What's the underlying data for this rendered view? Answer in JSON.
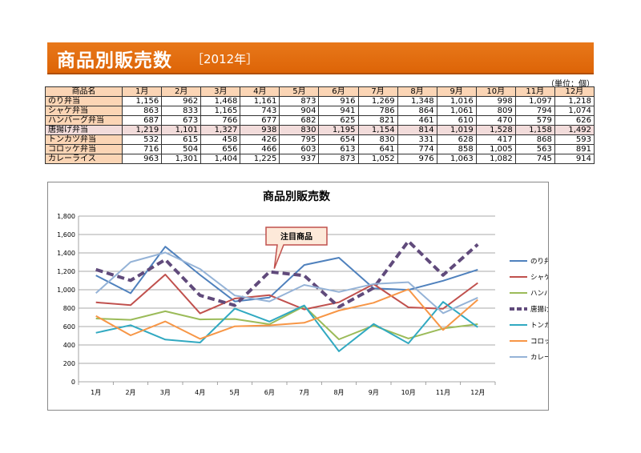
{
  "header": {
    "title": "商品別販売数",
    "subtitle": "［2012年］"
  },
  "unit_label": "（単位：個）",
  "table": {
    "header": [
      "商品名",
      "1月",
      "2月",
      "3月",
      "4月",
      "5月",
      "6月",
      "7月",
      "8月",
      "9月",
      "10月",
      "11月",
      "12月"
    ],
    "rows": [
      {
        "name": "のり弁当",
        "values": [
          "1,156",
          "962",
          "1,468",
          "1,161",
          "873",
          "916",
          "1,269",
          "1,348",
          "1,016",
          "998",
          "1,097",
          "1,218"
        ]
      },
      {
        "name": "シャケ弁当",
        "values": [
          "863",
          "833",
          "1,165",
          "743",
          "904",
          "941",
          "786",
          "864",
          "1,061",
          "809",
          "794",
          "1,074"
        ]
      },
      {
        "name": "ハンバーグ弁当",
        "values": [
          "687",
          "673",
          "766",
          "677",
          "682",
          "625",
          "821",
          "461",
          "610",
          "470",
          "579",
          "626"
        ]
      },
      {
        "name": "唐揚げ弁当",
        "values": [
          "1,219",
          "1,101",
          "1,327",
          "938",
          "830",
          "1,195",
          "1,154",
          "814",
          "1,019",
          "1,528",
          "1,158",
          "1,492"
        ]
      },
      {
        "name": "トンカツ弁当",
        "values": [
          "532",
          "615",
          "458",
          "426",
          "795",
          "654",
          "830",
          "331",
          "628",
          "417",
          "868",
          "593"
        ]
      },
      {
        "name": "コロッケ弁当",
        "values": [
          "716",
          "504",
          "656",
          "466",
          "603",
          "613",
          "641",
          "774",
          "858",
          "1,005",
          "563",
          "891"
        ]
      },
      {
        "name": "カレーライス",
        "values": [
          "963",
          "1,301",
          "1,404",
          "1,225",
          "937",
          "873",
          "1,052",
          "976",
          "1,063",
          "1,082",
          "745",
          "914"
        ]
      }
    ]
  },
  "chart_data": {
    "type": "line",
    "title": "商品別販売数",
    "categories": [
      "1月",
      "2月",
      "3月",
      "4月",
      "5月",
      "6月",
      "7月",
      "8月",
      "9月",
      "10月",
      "11月",
      "12月"
    ],
    "ylim": [
      0,
      1800
    ],
    "yticks": [
      "0",
      "200",
      "400",
      "600",
      "800",
      "1,000",
      "1,200",
      "1,400",
      "1,600",
      "1,800"
    ],
    "grid": true,
    "legend_position": "right",
    "annotation": {
      "text": "注目商品",
      "target_series": "唐揚げ弁当",
      "target_category": "6月"
    },
    "series": [
      {
        "name": "のり弁当",
        "color": "#4f81bd",
        "dashed": false,
        "values": [
          1156,
          962,
          1468,
          1161,
          873,
          916,
          1269,
          1348,
          1016,
          998,
          1097,
          1218
        ]
      },
      {
        "name": "シャケ弁当",
        "color": "#c0504d",
        "dashed": false,
        "values": [
          863,
          833,
          1165,
          743,
          904,
          941,
          786,
          864,
          1061,
          809,
          794,
          1074
        ]
      },
      {
        "name": "ハンバーグ弁当",
        "color": "#9bbb59",
        "dashed": false,
        "values": [
          687,
          673,
          766,
          677,
          682,
          625,
          821,
          461,
          610,
          470,
          579,
          626
        ]
      },
      {
        "name": "唐揚げ弁当",
        "color": "#604a7b",
        "dashed": true,
        "values": [
          1219,
          1101,
          1327,
          938,
          830,
          1195,
          1154,
          814,
          1019,
          1528,
          1158,
          1492
        ]
      },
      {
        "name": "トンカツ弁当",
        "color": "#31a9c1",
        "dashed": false,
        "values": [
          532,
          615,
          458,
          426,
          795,
          654,
          830,
          331,
          628,
          417,
          868,
          593
        ]
      },
      {
        "name": "コロッケ弁当",
        "color": "#f79646",
        "dashed": false,
        "values": [
          716,
          504,
          656,
          466,
          603,
          613,
          641,
          774,
          858,
          1005,
          563,
          891
        ]
      },
      {
        "name": "カレーライス",
        "color": "#95b3d7",
        "dashed": false,
        "values": [
          963,
          1301,
          1404,
          1225,
          937,
          873,
          1052,
          976,
          1063,
          1082,
          745,
          914
        ]
      }
    ]
  }
}
